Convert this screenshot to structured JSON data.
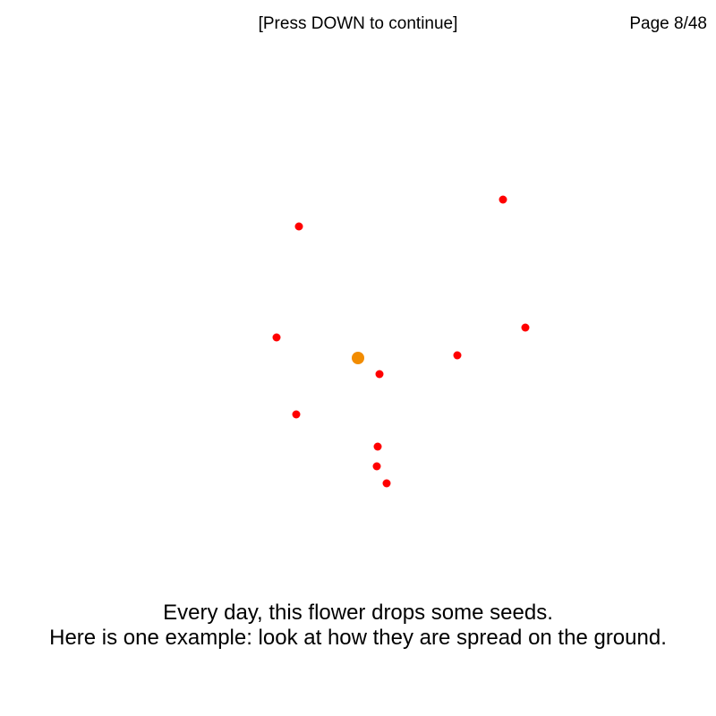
{
  "header": {
    "instruction": "[Press DOWN to continue]",
    "page_counter": "Page 8/48"
  },
  "caption": {
    "line1": "Every day, this flower drops some seeds.",
    "line2": "Here is one example: look at how they are spread on the ground."
  },
  "colors": {
    "flower": "#f28c00",
    "seed": "#ff0000"
  }
}
